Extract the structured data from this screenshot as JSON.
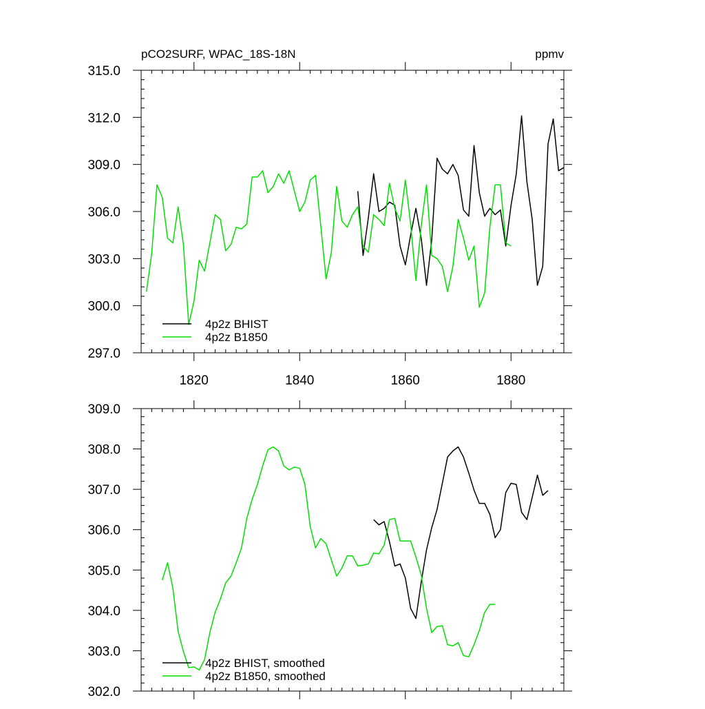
{
  "chart_data": [
    {
      "type": "line",
      "title": "pCO2SURF, WPAC_18S-18N",
      "units": "ppmv",
      "xlim": [
        1810,
        1890
      ],
      "ylim": [
        297.0,
        315.0
      ],
      "xticks": [
        1820,
        1840,
        1860,
        1880
      ],
      "yticks": [
        "297.0",
        "300.0",
        "303.0",
        "306.0",
        "309.0",
        "312.0",
        "315.0"
      ],
      "legend_position": "bottom-left",
      "series": [
        {
          "name": "4p2z BHIST",
          "color": "#000000",
          "x": [
            1851,
            1852,
            1853,
            1854,
            1855,
            1856,
            1857,
            1858,
            1859,
            1860,
            1861,
            1862,
            1863,
            1864,
            1865,
            1866,
            1867,
            1868,
            1869,
            1870,
            1871,
            1872,
            1873,
            1874,
            1875,
            1876,
            1877,
            1878,
            1879,
            1880,
            1881,
            1882,
            1883,
            1884,
            1885,
            1886,
            1887,
            1888,
            1889,
            1890
          ],
          "values": [
            307.3,
            303.2,
            305.6,
            308.4,
            306.0,
            306.2,
            306.6,
            306.4,
            303.8,
            302.6,
            304.5,
            306.2,
            304.3,
            301.3,
            304.2,
            309.4,
            308.7,
            308.4,
            309.0,
            308.3,
            306.1,
            305.7,
            310.2,
            307.2,
            305.7,
            306.2,
            305.8,
            306.1,
            303.8,
            306.4,
            308.4,
            312.1,
            307.9,
            305.5,
            301.3,
            302.5,
            310.3,
            311.9,
            308.6,
            308.8
          ]
        },
        {
          "name": "4p2z B1850",
          "color": "#00e000",
          "x": [
            1811,
            1812,
            1813,
            1814,
            1815,
            1816,
            1817,
            1818,
            1819,
            1820,
            1821,
            1822,
            1823,
            1824,
            1825,
            1826,
            1827,
            1828,
            1829,
            1830,
            1831,
            1832,
            1833,
            1834,
            1835,
            1836,
            1837,
            1838,
            1839,
            1840,
            1841,
            1842,
            1843,
            1844,
            1845,
            1846,
            1847,
            1848,
            1849,
            1850,
            1851,
            1852,
            1853,
            1854,
            1855,
            1856,
            1857,
            1858,
            1859,
            1860,
            1861,
            1862,
            1863,
            1864,
            1865,
            1866,
            1867,
            1868,
            1869,
            1870,
            1871,
            1872,
            1873,
            1874,
            1875,
            1876,
            1877,
            1878,
            1879,
            1880
          ],
          "values": [
            300.9,
            303.3,
            307.7,
            306.9,
            304.3,
            304.0,
            306.3,
            303.9,
            298.8,
            300.3,
            302.9,
            302.2,
            304.0,
            305.8,
            305.5,
            303.5,
            303.9,
            305.0,
            304.9,
            305.2,
            308.2,
            308.2,
            308.6,
            307.2,
            307.6,
            308.4,
            307.8,
            308.6,
            307.3,
            306.0,
            306.6,
            308.0,
            308.3,
            305.1,
            301.7,
            303.4,
            307.6,
            305.4,
            305.0,
            305.8,
            306.3,
            303.8,
            303.4,
            305.8,
            305.5,
            305.1,
            307.8,
            306.2,
            305.4,
            308.0,
            305.2,
            301.6,
            305.1,
            307.7,
            303.2,
            303.0,
            302.5,
            300.9,
            302.5,
            305.5,
            304.3,
            302.9,
            303.8,
            299.9,
            300.8,
            305.0,
            307.7,
            307.7,
            304.0,
            303.8
          ]
        }
      ]
    },
    {
      "type": "line",
      "title": "",
      "xlim": [
        1810,
        1890
      ],
      "ylim": [
        302.0,
        309.0
      ],
      "xticks": [
        1820,
        1840,
        1860,
        1880
      ],
      "yticks": [
        "302.0",
        "303.0",
        "304.0",
        "305.0",
        "306.0",
        "307.0",
        "308.0",
        "309.0"
      ],
      "legend_position": "bottom-left",
      "series": [
        {
          "name": "4p2z BHIST, smoothed",
          "color": "#000000",
          "x": [
            1854,
            1855,
            1856,
            1857,
            1858,
            1859,
            1860,
            1861,
            1862,
            1863,
            1864,
            1865,
            1866,
            1867,
            1868,
            1869,
            1870,
            1871,
            1872,
            1873,
            1874,
            1875,
            1876,
            1877,
            1878,
            1879,
            1880,
            1881,
            1882,
            1883,
            1884,
            1885,
            1886,
            1887
          ],
          "values": [
            306.25,
            306.12,
            306.2,
            305.7,
            305.1,
            305.15,
            304.8,
            304.05,
            303.8,
            304.7,
            305.5,
            306.05,
            306.5,
            307.15,
            307.8,
            307.95,
            308.05,
            307.8,
            307.4,
            306.98,
            306.65,
            306.65,
            306.38,
            305.8,
            306.0,
            306.92,
            307.15,
            307.12,
            306.43,
            306.25,
            306.8,
            307.35,
            306.85,
            306.97
          ]
        },
        {
          "name": "4p2z B1850, smoothed",
          "color": "#00e000",
          "x": [
            1814,
            1815,
            1816,
            1817,
            1818,
            1819,
            1820,
            1821,
            1822,
            1823,
            1824,
            1825,
            1826,
            1827,
            1828,
            1829,
            1830,
            1831,
            1832,
            1833,
            1834,
            1835,
            1836,
            1837,
            1838,
            1839,
            1840,
            1841,
            1842,
            1843,
            1844,
            1845,
            1846,
            1847,
            1848,
            1849,
            1850,
            1851,
            1852,
            1853,
            1854,
            1855,
            1856,
            1857,
            1858,
            1859,
            1860,
            1861,
            1862,
            1863,
            1864,
            1865,
            1866,
            1867,
            1868,
            1869,
            1870,
            1871,
            1872,
            1873,
            1874,
            1875,
            1876,
            1877
          ],
          "values": [
            304.75,
            305.18,
            304.55,
            303.48,
            302.98,
            302.58,
            302.6,
            302.52,
            302.78,
            303.45,
            303.95,
            304.28,
            304.68,
            304.85,
            305.18,
            305.55,
            306.28,
            306.75,
            307.12,
            307.58,
            307.98,
            308.05,
            307.95,
            307.58,
            307.48,
            307.55,
            307.52,
            307.12,
            306.08,
            305.55,
            305.78,
            305.65,
            305.25,
            304.85,
            305.05,
            305.35,
            305.35,
            305.1,
            305.12,
            305.15,
            305.42,
            305.4,
            305.62,
            306.25,
            306.28,
            305.72,
            305.72,
            305.72,
            305.32,
            304.88,
            304.05,
            303.45,
            303.6,
            303.62,
            303.15,
            303.12,
            303.2,
            302.88,
            302.85,
            303.15,
            303.5,
            303.95,
            304.15,
            304.15
          ]
        }
      ]
    }
  ]
}
